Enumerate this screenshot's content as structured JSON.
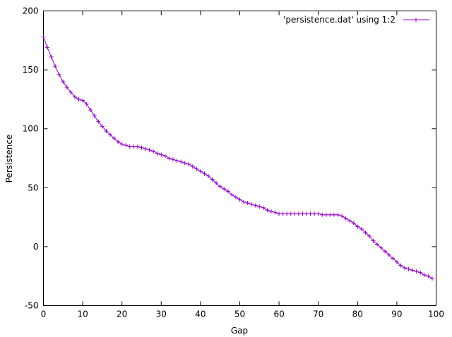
{
  "chart_data": {
    "type": "line",
    "title": "",
    "xlabel": "Gap",
    "ylabel": "Persistence",
    "xlim": [
      0,
      100
    ],
    "ylim": [
      -50,
      200
    ],
    "x_ticks": [
      0,
      10,
      20,
      30,
      40,
      50,
      60,
      70,
      80,
      90,
      100
    ],
    "y_ticks": [
      -50,
      0,
      50,
      100,
      150,
      200
    ],
    "legend": {
      "position": "top-right",
      "label": "'persistence.dat' using 1:2"
    },
    "series": [
      {
        "name": "'persistence.dat' using 1:2",
        "color": "#9400d3",
        "marker": "plus",
        "x": [
          0,
          1,
          2,
          3,
          4,
          5,
          6,
          7,
          8,
          9,
          10,
          11,
          12,
          13,
          14,
          15,
          16,
          17,
          18,
          19,
          20,
          21,
          22,
          23,
          24,
          25,
          26,
          27,
          28,
          29,
          30,
          31,
          32,
          33,
          34,
          35,
          36,
          37,
          38,
          39,
          40,
          41,
          42,
          43,
          44,
          45,
          46,
          47,
          48,
          49,
          50,
          51,
          52,
          53,
          54,
          55,
          56,
          57,
          58,
          59,
          60,
          61,
          62,
          63,
          64,
          65,
          66,
          67,
          68,
          69,
          70,
          71,
          72,
          73,
          74,
          75,
          76,
          77,
          78,
          79,
          80,
          81,
          82,
          83,
          84,
          85,
          86,
          87,
          88,
          89,
          90,
          91,
          92,
          93,
          94,
          95,
          96,
          97,
          98,
          99
        ],
        "values": [
          178,
          169,
          161,
          153,
          146,
          140,
          135,
          131,
          127,
          125,
          124,
          121,
          116,
          111,
          106,
          102,
          98,
          95,
          92,
          89,
          87,
          86,
          85,
          85,
          85,
          84,
          83,
          82,
          81,
          79,
          78,
          77,
          75,
          74,
          73,
          72,
          71,
          70,
          68,
          66,
          64,
          62,
          60,
          57,
          54,
          51,
          49,
          47,
          44,
          42,
          40,
          38,
          37,
          36,
          35,
          34,
          33,
          31,
          30,
          29,
          28,
          28,
          28,
          28,
          28,
          28,
          28,
          28,
          28,
          28,
          28,
          27,
          27,
          27,
          27,
          27,
          26,
          24,
          22,
          20,
          17,
          15,
          12,
          9,
          5,
          2,
          -1,
          -4,
          -7,
          -10,
          -13,
          -16,
          -18,
          -19,
          -20,
          -21,
          -22,
          -24,
          -25,
          -27
        ]
      }
    ]
  }
}
